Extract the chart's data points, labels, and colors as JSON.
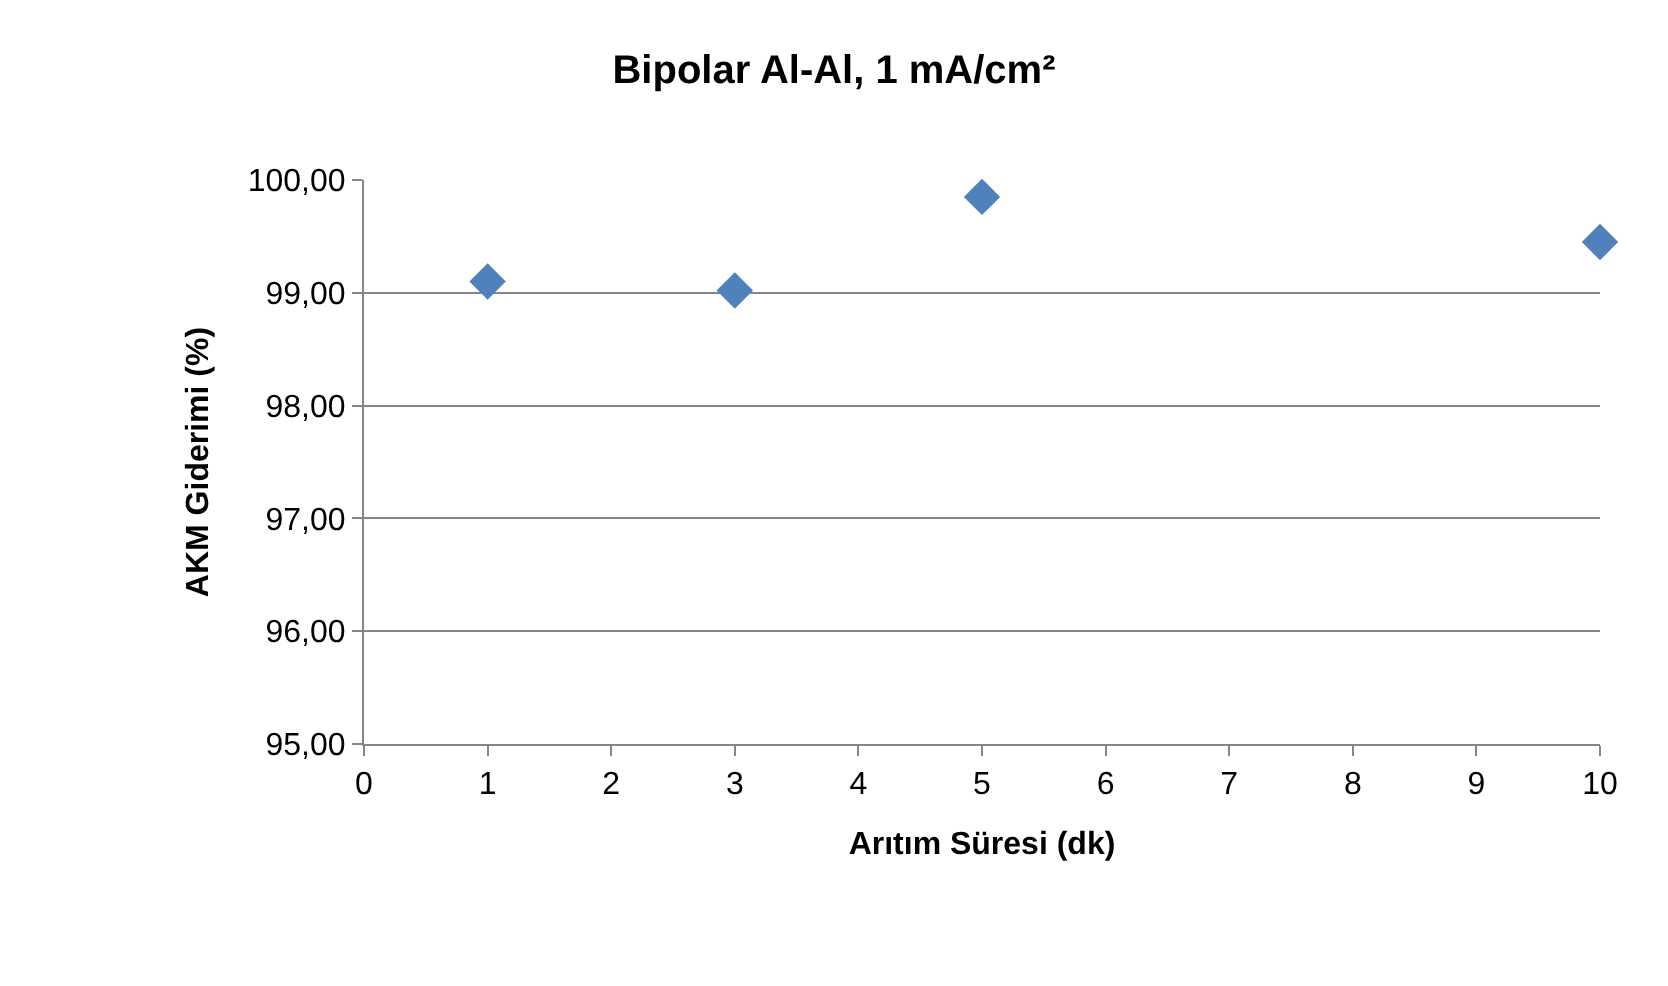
{
  "chart_data": {
    "type": "scatter",
    "title": "Bipolar Al-Al, 1 mA/cm²",
    "xlabel": "Arıtım Süresi (dk)",
    "ylabel": "AKM Giderimi (%)",
    "x": [
      1,
      3,
      5,
      10
    ],
    "series": [
      {
        "color": "#4f81bd",
        "values": [
          99.1,
          99.02,
          99.85,
          99.45
        ]
      }
    ],
    "xlim": [
      0,
      10
    ],
    "xticks": [
      0,
      1,
      2,
      3,
      4,
      5,
      6,
      7,
      8,
      9,
      10
    ],
    "ylim": [
      95,
      100
    ],
    "yticks": [
      {
        "value": 95,
        "label": "95,00"
      },
      {
        "value": 96,
        "label": "96,00"
      },
      {
        "value": 97,
        "label": "97,00"
      },
      {
        "value": 98,
        "label": "98,00"
      },
      {
        "value": 99,
        "label": "99,00"
      },
      {
        "value": 100,
        "label": "100,00"
      }
    ],
    "grid": "y",
    "marker": "diamond"
  }
}
